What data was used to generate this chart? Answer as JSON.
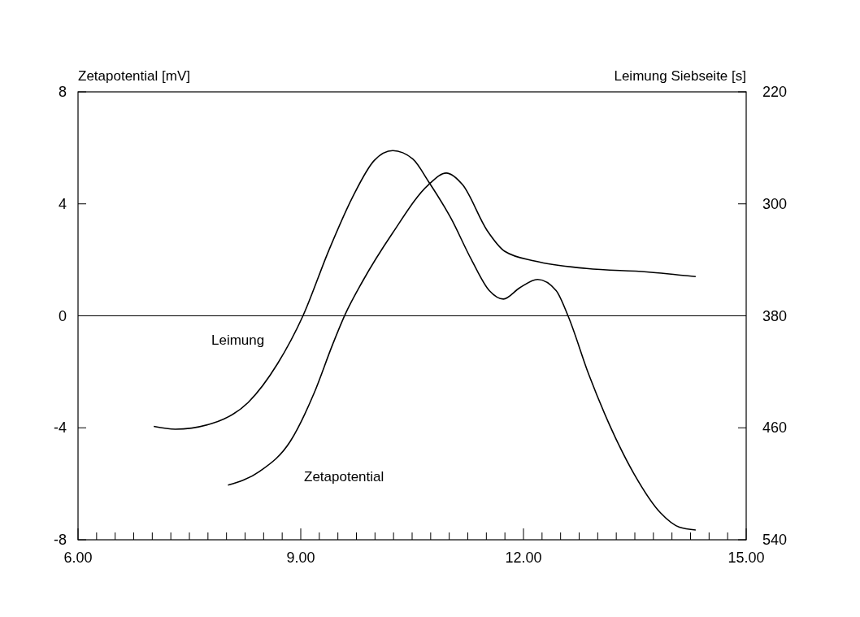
{
  "chart_data": {
    "type": "line",
    "xlabel": null,
    "ylabel": "Zetapotential [mV]",
    "y2label": "Leimung Siebseite [s]",
    "xlim": [
      6,
      15
    ],
    "xticks": [
      {
        "value": 6,
        "label": "6.00"
      },
      {
        "value": 6.25,
        "label": null
      },
      {
        "value": 6.5,
        "label": null
      },
      {
        "value": 6.75,
        "label": null
      },
      {
        "value": 7,
        "label": null
      },
      {
        "value": 7.25,
        "label": null
      },
      {
        "value": 7.5,
        "label": null
      },
      {
        "value": 7.75,
        "label": null
      },
      {
        "value": 8,
        "label": null
      },
      {
        "value": 8.25,
        "label": null
      },
      {
        "value": 8.5,
        "label": null
      },
      {
        "value": 8.75,
        "label": null
      },
      {
        "value": 9,
        "label": "9.00"
      },
      {
        "value": 9.25,
        "label": null
      },
      {
        "value": 9.5,
        "label": null
      },
      {
        "value": 9.75,
        "label": null
      },
      {
        "value": 10,
        "label": null
      },
      {
        "value": 10.25,
        "label": null
      },
      {
        "value": 10.5,
        "label": null
      },
      {
        "value": 10.75,
        "label": null
      },
      {
        "value": 11,
        "label": null
      },
      {
        "value": 11.25,
        "label": null
      },
      {
        "value": 11.5,
        "label": null
      },
      {
        "value": 11.75,
        "label": null
      },
      {
        "value": 12,
        "label": "12.00"
      },
      {
        "value": 12.25,
        "label": null
      },
      {
        "value": 12.5,
        "label": null
      },
      {
        "value": 12.75,
        "label": null
      },
      {
        "value": 13,
        "label": null
      },
      {
        "value": 13.25,
        "label": null
      },
      {
        "value": 13.5,
        "label": null
      },
      {
        "value": 13.75,
        "label": null
      },
      {
        "value": 14,
        "label": null
      },
      {
        "value": 14.25,
        "label": null
      },
      {
        "value": 14.5,
        "label": null
      },
      {
        "value": 14.75,
        "label": null
      },
      {
        "value": 15,
        "label": "15.00"
      }
    ],
    "ylim": [
      -8,
      8
    ],
    "yticks": [
      -8,
      -4,
      0,
      4,
      8
    ],
    "y2lim": [
      540,
      220
    ],
    "y2ticks": [
      540,
      460,
      380,
      300,
      220
    ],
    "grid": false,
    "marker": "none",
    "line_style": "solid",
    "ref_lines": [
      {
        "axis": "y",
        "value": 0,
        "color": "#000000"
      }
    ],
    "series": [
      {
        "name": "Zetapotential",
        "color": "#000000",
        "x": [
          8.02,
          8.45,
          8.86,
          9.18,
          9.43,
          9.6,
          9.83,
          10.24,
          10.72,
          10.96,
          11.18,
          11.51,
          11.75,
          12.16,
          12.85,
          13.66,
          14.32
        ],
        "values": [
          -6.05,
          -5.55,
          -4.48,
          -2.76,
          -1.02,
          0.06,
          1.22,
          2.97,
          4.68,
          5.1,
          4.68,
          3.05,
          2.3,
          1.95,
          1.69,
          1.57,
          1.4
        ]
      },
      {
        "name": "Leimung",
        "color": "#000000",
        "axis": "y2",
        "x": [
          7.02,
          7.31,
          7.8,
          8.29,
          8.69,
          9.03,
          9.38,
          9.7,
          9.99,
          10.24,
          10.51,
          10.72,
          11.02,
          11.3,
          11.54,
          11.73,
          11.95,
          12.19,
          12.44,
          12.6,
          12.88,
          13.16,
          13.49,
          13.85,
          14.1,
          14.32
        ],
        "values": [
          459,
          461,
          457,
          442,
          414,
          380,
          333,
          295,
          269,
          262,
          268,
          284,
          310,
          340,
          362,
          368,
          360,
          354,
          362,
          380,
          422,
          458,
          493,
          521,
          531,
          533
        ]
      }
    ]
  }
}
